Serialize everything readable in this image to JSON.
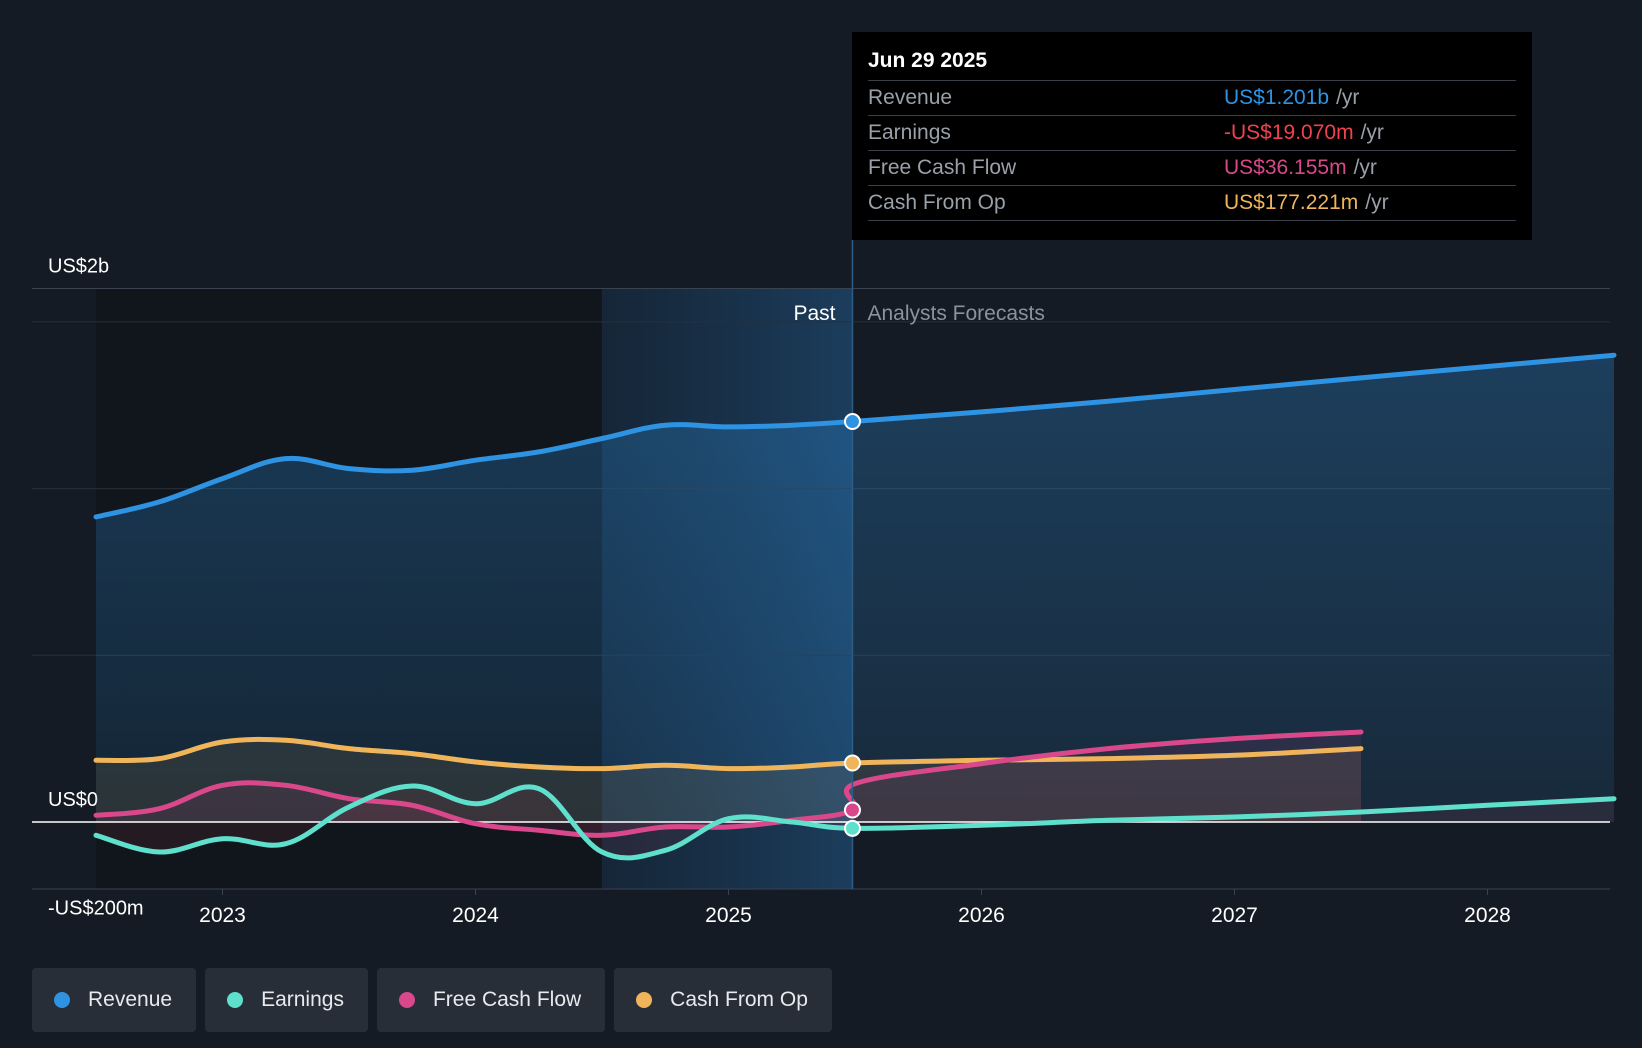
{
  "colors": {
    "revenue": "#2e93e2",
    "earnings": "#5fe0cd",
    "free_cash_flow": "#d9488b",
    "cash_from_op": "#f0b45a",
    "background": "#151b24",
    "earnings_negative": "#f0424e"
  },
  "tooltip": {
    "date": "Jun 29 2025",
    "rows": [
      {
        "label": "Revenue",
        "value": "US$1.201b",
        "unit": "/yr",
        "color": "#2e93e2"
      },
      {
        "label": "Earnings",
        "value": "-US$19.070m",
        "unit": "/yr",
        "color": "#f0424e"
      },
      {
        "label": "Free Cash Flow",
        "value": "US$36.155m",
        "unit": "/yr",
        "color": "#d9488b"
      },
      {
        "label": "Cash From Op",
        "value": "US$177.221m",
        "unit": "/yr",
        "color": "#f0b45a"
      }
    ]
  },
  "legend": [
    {
      "label": "Revenue",
      "color": "#2e93e2"
    },
    {
      "label": "Earnings",
      "color": "#5fe0cd"
    },
    {
      "label": "Free Cash Flow",
      "color": "#d9488b"
    },
    {
      "label": "Cash From Op",
      "color": "#f0b45a"
    }
  ],
  "chart_data": {
    "type": "line",
    "title": "",
    "y_unit": "US$ m",
    "ylim": [
      -200,
      1600
    ],
    "xlim": [
      2022.25,
      2028.5
    ],
    "y_tick_labels": [
      {
        "value": 1600,
        "label": "US$2b"
      },
      {
        "value": 0,
        "label": "US$0"
      },
      {
        "value": -200,
        "label": "-US$200m"
      }
    ],
    "x_ticks": [
      {
        "value": 2023,
        "label": "2023"
      },
      {
        "value": 2024,
        "label": "2024"
      },
      {
        "value": 2025,
        "label": "2025"
      },
      {
        "value": 2026,
        "label": "2026"
      },
      {
        "value": 2027,
        "label": "2027"
      },
      {
        "value": 2028,
        "label": "2028"
      }
    ],
    "divider": {
      "x": 2025.49,
      "past_label": "Past",
      "forecast_label": "Analysts Forecasts"
    },
    "highlight_band": [
      2024.5,
      2025.49
    ],
    "marker_x": 2025.49,
    "grid": true,
    "series": [
      {
        "name": "Revenue",
        "color": "#2e93e2",
        "points": [
          [
            2022.5,
            915
          ],
          [
            2022.75,
            960
          ],
          [
            2023.0,
            1030
          ],
          [
            2023.25,
            1090
          ],
          [
            2023.5,
            1060
          ],
          [
            2023.75,
            1055
          ],
          [
            2024.0,
            1085
          ],
          [
            2024.25,
            1110
          ],
          [
            2024.5,
            1150
          ],
          [
            2024.75,
            1190
          ],
          [
            2025.0,
            1185
          ],
          [
            2025.25,
            1190
          ],
          [
            2025.49,
            1201
          ],
          [
            2026.0,
            1230
          ],
          [
            2026.5,
            1262
          ],
          [
            2027.0,
            1297
          ],
          [
            2027.5,
            1332
          ],
          [
            2028.0,
            1366
          ],
          [
            2028.5,
            1400
          ]
        ]
      },
      {
        "name": "Earnings",
        "color": "#5fe0cd",
        "points": [
          [
            2022.5,
            -40
          ],
          [
            2022.75,
            -90
          ],
          [
            2023.0,
            -50
          ],
          [
            2023.25,
            -65
          ],
          [
            2023.5,
            45
          ],
          [
            2023.75,
            108
          ],
          [
            2024.0,
            55
          ],
          [
            2024.25,
            100
          ],
          [
            2024.5,
            -90
          ],
          [
            2024.75,
            -85
          ],
          [
            2025.0,
            10
          ],
          [
            2025.25,
            0
          ],
          [
            2025.49,
            -19
          ],
          [
            2026.0,
            -10
          ],
          [
            2026.5,
            5
          ],
          [
            2027.0,
            15
          ],
          [
            2027.5,
            30
          ],
          [
            2028.0,
            50
          ],
          [
            2028.5,
            70
          ]
        ]
      },
      {
        "name": "Free Cash Flow",
        "color": "#d9488b",
        "points": [
          [
            2022.5,
            20
          ],
          [
            2022.75,
            40
          ],
          [
            2023.0,
            110
          ],
          [
            2023.25,
            110
          ],
          [
            2023.5,
            70
          ],
          [
            2023.75,
            50
          ],
          [
            2024.0,
            -5
          ],
          [
            2024.25,
            -25
          ],
          [
            2024.5,
            -40
          ],
          [
            2024.75,
            -15
          ],
          [
            2025.0,
            -15
          ],
          [
            2025.25,
            5
          ],
          [
            2025.49,
            36
          ],
          [
            2025.5,
            115
          ],
          [
            2026.0,
            175
          ],
          [
            2026.5,
            220
          ],
          [
            2027.0,
            250
          ],
          [
            2027.5,
            270
          ]
        ]
      },
      {
        "name": "Cash From Op",
        "color": "#f0b45a",
        "points": [
          [
            2022.5,
            185
          ],
          [
            2022.75,
            190
          ],
          [
            2023.0,
            240
          ],
          [
            2023.25,
            245
          ],
          [
            2023.5,
            220
          ],
          [
            2023.75,
            205
          ],
          [
            2024.0,
            180
          ],
          [
            2024.25,
            165
          ],
          [
            2024.5,
            160
          ],
          [
            2024.75,
            170
          ],
          [
            2025.0,
            160
          ],
          [
            2025.25,
            165
          ],
          [
            2025.49,
            177
          ],
          [
            2026.0,
            185
          ],
          [
            2026.5,
            190
          ],
          [
            2027.0,
            200
          ],
          [
            2027.5,
            220
          ]
        ]
      }
    ]
  }
}
